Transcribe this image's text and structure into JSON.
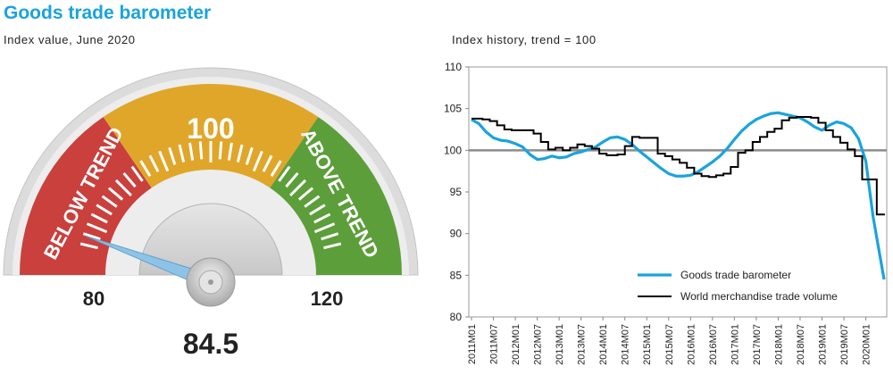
{
  "header": {
    "title": "Goods trade barometer",
    "gauge_subtitle": "Index value, June 2020",
    "chart_subtitle": "Index history, trend = 100"
  },
  "gauge": {
    "value": 84.5,
    "value_label": "84.5",
    "min": 80,
    "max": 120,
    "min_label": "80",
    "max_label": "120",
    "center_label": "100",
    "below_label": "BELOW TREND",
    "above_label": "ABOVE TREND",
    "colors": {
      "below": "#c9403d",
      "center": "#e0a62a",
      "above": "#5c9e3a",
      "needle": "#8ec3e8",
      "frame": "#d9d9d9"
    }
  },
  "chart_data": {
    "type": "line",
    "ylim": [
      80,
      110
    ],
    "yticks": [
      80,
      85,
      90,
      95,
      100,
      105,
      110
    ],
    "reference_line": 100,
    "x_start": "2011M01",
    "x_end": "2020M06",
    "xtick_labels": [
      "2011M01",
      "2011M07",
      "2012M01",
      "2012M07",
      "2013M01",
      "2013M07",
      "2014M01",
      "2014M07",
      "2015M01",
      "2015M07",
      "2016M01",
      "2016M07",
      "2017M01",
      "2017M07",
      "2018M01",
      "2018M07",
      "2019M01",
      "2019M07",
      "2020M01"
    ],
    "legend_position": "bottom-right",
    "series": [
      {
        "name": "Goods trade barometer",
        "color": "#1aa3dd",
        "x": [
          "2011M01",
          "2011M03",
          "2011M05",
          "2011M07",
          "2011M09",
          "2011M11",
          "2012M01",
          "2012M03",
          "2012M05",
          "2012M07",
          "2012M09",
          "2012M11",
          "2013M01",
          "2013M03",
          "2013M05",
          "2013M07",
          "2013M09",
          "2013M11",
          "2014M01",
          "2014M03",
          "2014M05",
          "2014M07",
          "2014M09",
          "2014M11",
          "2015M01",
          "2015M03",
          "2015M05",
          "2015M07",
          "2015M09",
          "2015M11",
          "2016M01",
          "2016M03",
          "2016M05",
          "2016M07",
          "2016M09",
          "2016M11",
          "2017M01",
          "2017M03",
          "2017M05",
          "2017M07",
          "2017M09",
          "2017M11",
          "2018M01",
          "2018M03",
          "2018M05",
          "2018M07",
          "2018M09",
          "2018M11",
          "2019M01",
          "2019M03",
          "2019M05",
          "2019M07",
          "2019M09",
          "2019M11",
          "2020M01",
          "2020M03",
          "2020M05",
          "2020M06"
        ],
        "values": [
          103.7,
          103.2,
          102.2,
          101.5,
          101.2,
          101.1,
          100.8,
          100.4,
          99.5,
          98.9,
          99.0,
          99.3,
          99.1,
          99.2,
          99.6,
          99.8,
          100.1,
          100.4,
          101.0,
          101.5,
          101.6,
          101.3,
          100.7,
          99.9,
          99.2,
          98.5,
          97.8,
          97.2,
          96.9,
          96.9,
          97.0,
          97.4,
          98.0,
          98.6,
          99.3,
          100.2,
          101.3,
          102.3,
          103.1,
          103.7,
          104.1,
          104.4,
          104.5,
          104.3,
          104.1,
          103.9,
          103.4,
          102.8,
          102.4,
          103.0,
          103.4,
          103.2,
          102.7,
          101.4,
          98.7,
          92.0,
          87.0,
          84.5
        ]
      },
      {
        "name": "World merchandise trade volume",
        "color": "#000000",
        "x": [
          "2011M01",
          "2011M04",
          "2011M06",
          "2011M08",
          "2011M10",
          "2011M12",
          "2012M03",
          "2012M06",
          "2012M08",
          "2012M10",
          "2012M12",
          "2013M02",
          "2013M04",
          "2013M06",
          "2013M08",
          "2013M10",
          "2013M12",
          "2014M02",
          "2014M05",
          "2014M07",
          "2014M09",
          "2014M11",
          "2015M02",
          "2015M04",
          "2015M06",
          "2015M08",
          "2015M10",
          "2015M12",
          "2016M02",
          "2016M04",
          "2016M06",
          "2016M08",
          "2016M10",
          "2016M12",
          "2017M02",
          "2017M04",
          "2017M06",
          "2017M08",
          "2017M10",
          "2017M12",
          "2018M02",
          "2018M04",
          "2018M06",
          "2018M08",
          "2018M10",
          "2018M12",
          "2019M02",
          "2019M04",
          "2019M06",
          "2019M08",
          "2019M10",
          "2019M12",
          "2020M02",
          "2020M04",
          "2020M05"
        ],
        "values": [
          103.8,
          103.7,
          103.5,
          103.0,
          102.5,
          102.4,
          102.4,
          102.0,
          101.0,
          100.1,
          100.3,
          100.0,
          100.3,
          100.7,
          100.5,
          100.2,
          99.6,
          99.4,
          99.5,
          100.5,
          101.6,
          101.5,
          101.5,
          99.6,
          99.3,
          98.9,
          98.5,
          97.9,
          97.2,
          96.9,
          96.8,
          97.0,
          97.2,
          98.0,
          99.7,
          100.0,
          101.0,
          101.6,
          102.2,
          102.6,
          103.6,
          103.9,
          104.0,
          104.0,
          103.9,
          103.3,
          102.4,
          101.6,
          100.9,
          100.1,
          99.3,
          96.5,
          96.5,
          92.3,
          92.3
        ]
      }
    ]
  }
}
